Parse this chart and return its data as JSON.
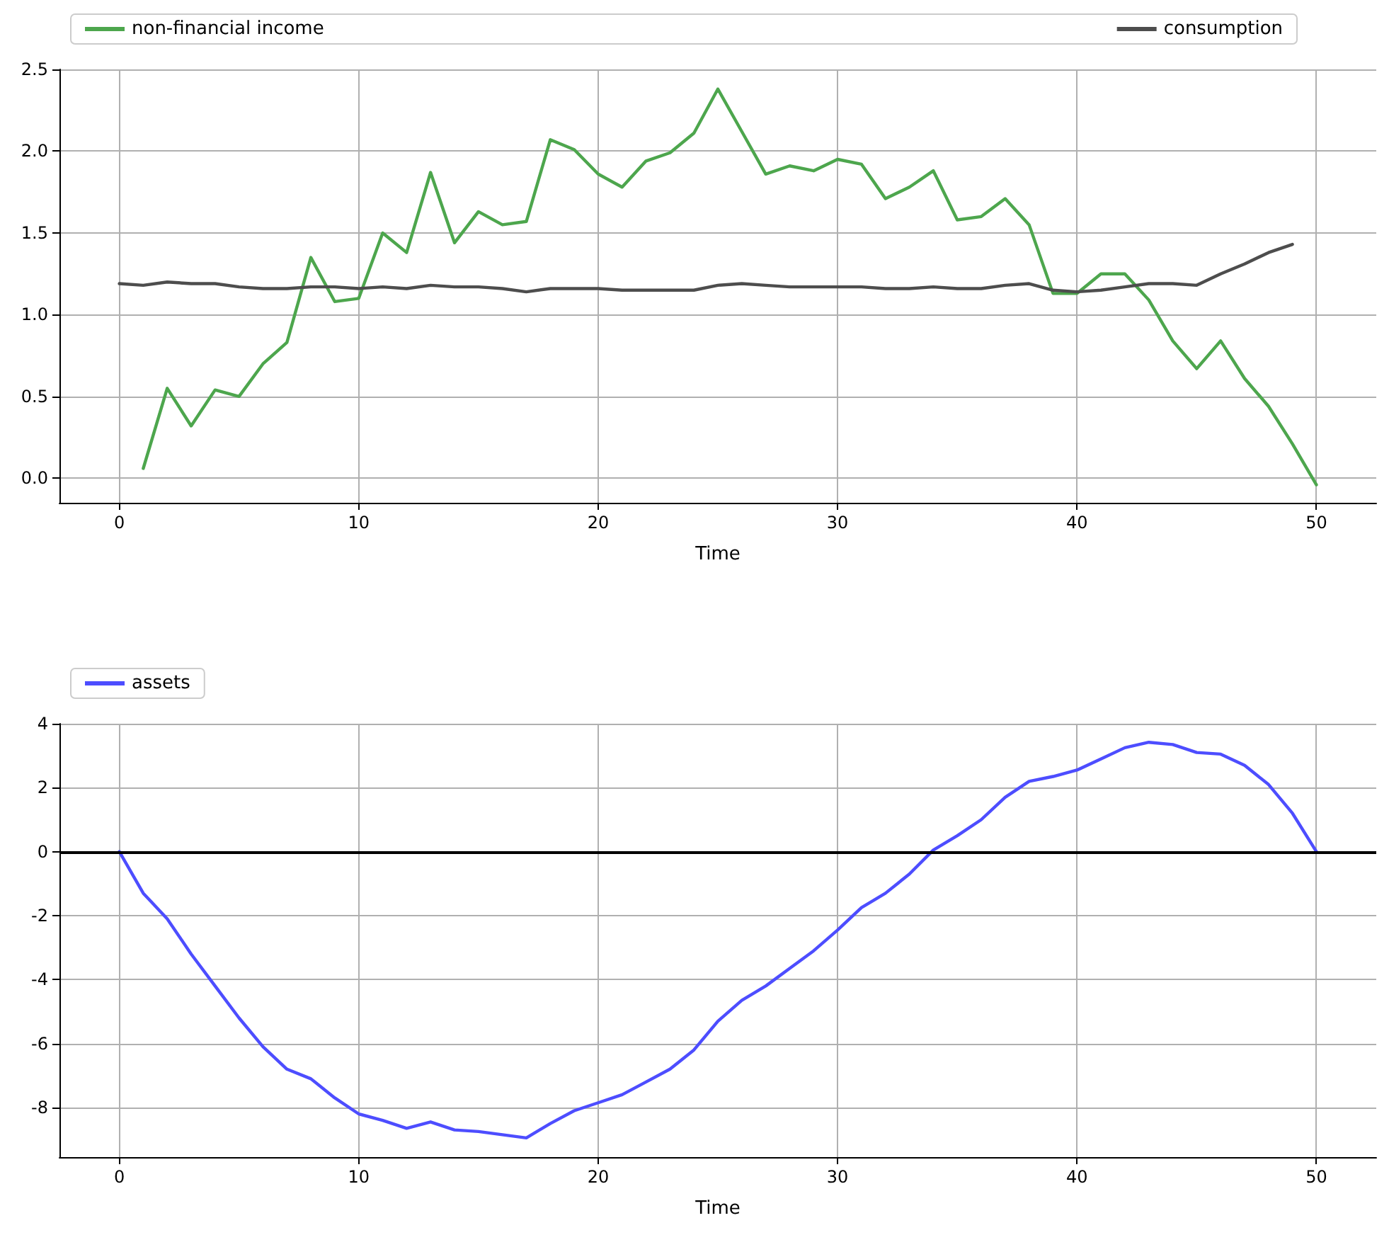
{
  "chart_data": [
    {
      "type": "line",
      "xlabel": "Time",
      "xlim": [
        -2.5,
        52.5
      ],
      "xticks": [
        0,
        10,
        20,
        30,
        40,
        50
      ],
      "ylim": [
        -0.15,
        2.5
      ],
      "yticks": [
        {
          "value": 0,
          "label": "0.0"
        },
        0.5,
        {
          "value": 1,
          "label": "1.0"
        },
        1.5,
        {
          "value": 2,
          "label": "2.0"
        },
        2.5
      ],
      "grid": true,
      "legend": "top",
      "marker": "none",
      "line_style": "solid",
      "series": [
        {
          "name": "non-financial income",
          "color": "#4da64d",
          "x": [
            1,
            2,
            3,
            4,
            5,
            6,
            7,
            8,
            9,
            10,
            11,
            12,
            13,
            14,
            15,
            16,
            17,
            18,
            19,
            20,
            21,
            22,
            23,
            24,
            25,
            26,
            27,
            28,
            29,
            30,
            31,
            32,
            33,
            34,
            35,
            36,
            37,
            38,
            39,
            40,
            41,
            42,
            43,
            44,
            45,
            46,
            47,
            48,
            49,
            50
          ],
          "values": [
            0.06,
            0.55,
            0.32,
            0.54,
            0.5,
            0.7,
            0.83,
            1.35,
            1.08,
            1.1,
            1.5,
            1.38,
            1.87,
            1.44,
            1.63,
            1.55,
            1.57,
            2.07,
            2.01,
            1.86,
            1.78,
            1.94,
            1.99,
            2.11,
            2.38,
            2.12,
            1.86,
            1.91,
            1.88,
            1.95,
            1.92,
            1.71,
            1.78,
            1.88,
            1.58,
            1.6,
            1.71,
            1.55,
            1.13,
            1.13,
            1.25,
            1.25,
            1.09,
            0.84,
            0.67,
            0.84,
            0.61,
            0.44,
            0.21,
            -0.04
          ]
        },
        {
          "name": "consumption",
          "color": "#4d4d4d",
          "x": [
            0,
            1,
            2,
            3,
            4,
            5,
            6,
            7,
            8,
            9,
            10,
            11,
            12,
            13,
            14,
            15,
            16,
            17,
            18,
            19,
            20,
            21,
            22,
            23,
            24,
            25,
            26,
            27,
            28,
            29,
            30,
            31,
            32,
            33,
            34,
            35,
            36,
            37,
            38,
            39,
            40,
            41,
            42,
            43,
            44,
            45,
            46,
            47,
            48,
            49
          ],
          "values": [
            1.19,
            1.18,
            1.2,
            1.19,
            1.19,
            1.17,
            1.16,
            1.16,
            1.17,
            1.17,
            1.16,
            1.17,
            1.16,
            1.18,
            1.17,
            1.17,
            1.16,
            1.14,
            1.16,
            1.16,
            1.16,
            1.15,
            1.15,
            1.15,
            1.15,
            1.18,
            1.19,
            1.18,
            1.17,
            1.17,
            1.17,
            1.17,
            1.16,
            1.16,
            1.17,
            1.16,
            1.16,
            1.18,
            1.19,
            1.15,
            1.14,
            1.15,
            1.17,
            1.19,
            1.19,
            1.18,
            1.25,
            1.31,
            1.38,
            1.43
          ]
        }
      ]
    },
    {
      "type": "line",
      "xlabel": "Time",
      "xlim": [
        -2.5,
        52.5
      ],
      "xticks": [
        0,
        10,
        20,
        30,
        40,
        50
      ],
      "ylim": [
        -9.55,
        4
      ],
      "yticks": [
        -8,
        -6,
        -4,
        -2,
        0,
        2,
        4
      ],
      "grid": true,
      "legend": "top",
      "marker": "none",
      "line_style": "solid",
      "ref_lines": [
        {
          "axis": "y",
          "value": 0,
          "color": "#000000"
        }
      ],
      "series": [
        {
          "name": "assets",
          "color": "#4d4dff",
          "x": [
            0,
            1,
            2,
            3,
            4,
            5,
            6,
            7,
            8,
            9,
            10,
            11,
            12,
            13,
            14,
            15,
            16,
            17,
            18,
            19,
            20,
            21,
            22,
            23,
            24,
            25,
            26,
            27,
            28,
            29,
            30,
            31,
            32,
            33,
            34,
            35,
            36,
            37,
            38,
            39,
            40,
            41,
            42,
            43,
            44,
            45,
            46,
            47,
            48,
            49,
            50
          ],
          "values": [
            0,
            -1.3,
            -2.1,
            -3.2,
            -4.2,
            -5.2,
            -6.1,
            -6.8,
            -7.1,
            -7.7,
            -8.2,
            -8.4,
            -8.65,
            -8.45,
            -8.7,
            -8.75,
            -8.85,
            -8.95,
            -8.5,
            -8.1,
            -7.85,
            -7.6,
            -7.2,
            -6.8,
            -6.2,
            -5.3,
            -4.65,
            -4.2,
            -3.65,
            -3.1,
            -2.45,
            -1.75,
            -1.3,
            -0.7,
            0.05,
            0.5,
            1.0,
            1.7,
            2.2,
            2.35,
            2.55,
            2.9,
            3.25,
            3.42,
            3.35,
            3.1,
            3.05,
            2.7,
            2.1,
            1.2,
            0
          ]
        }
      ]
    }
  ]
}
